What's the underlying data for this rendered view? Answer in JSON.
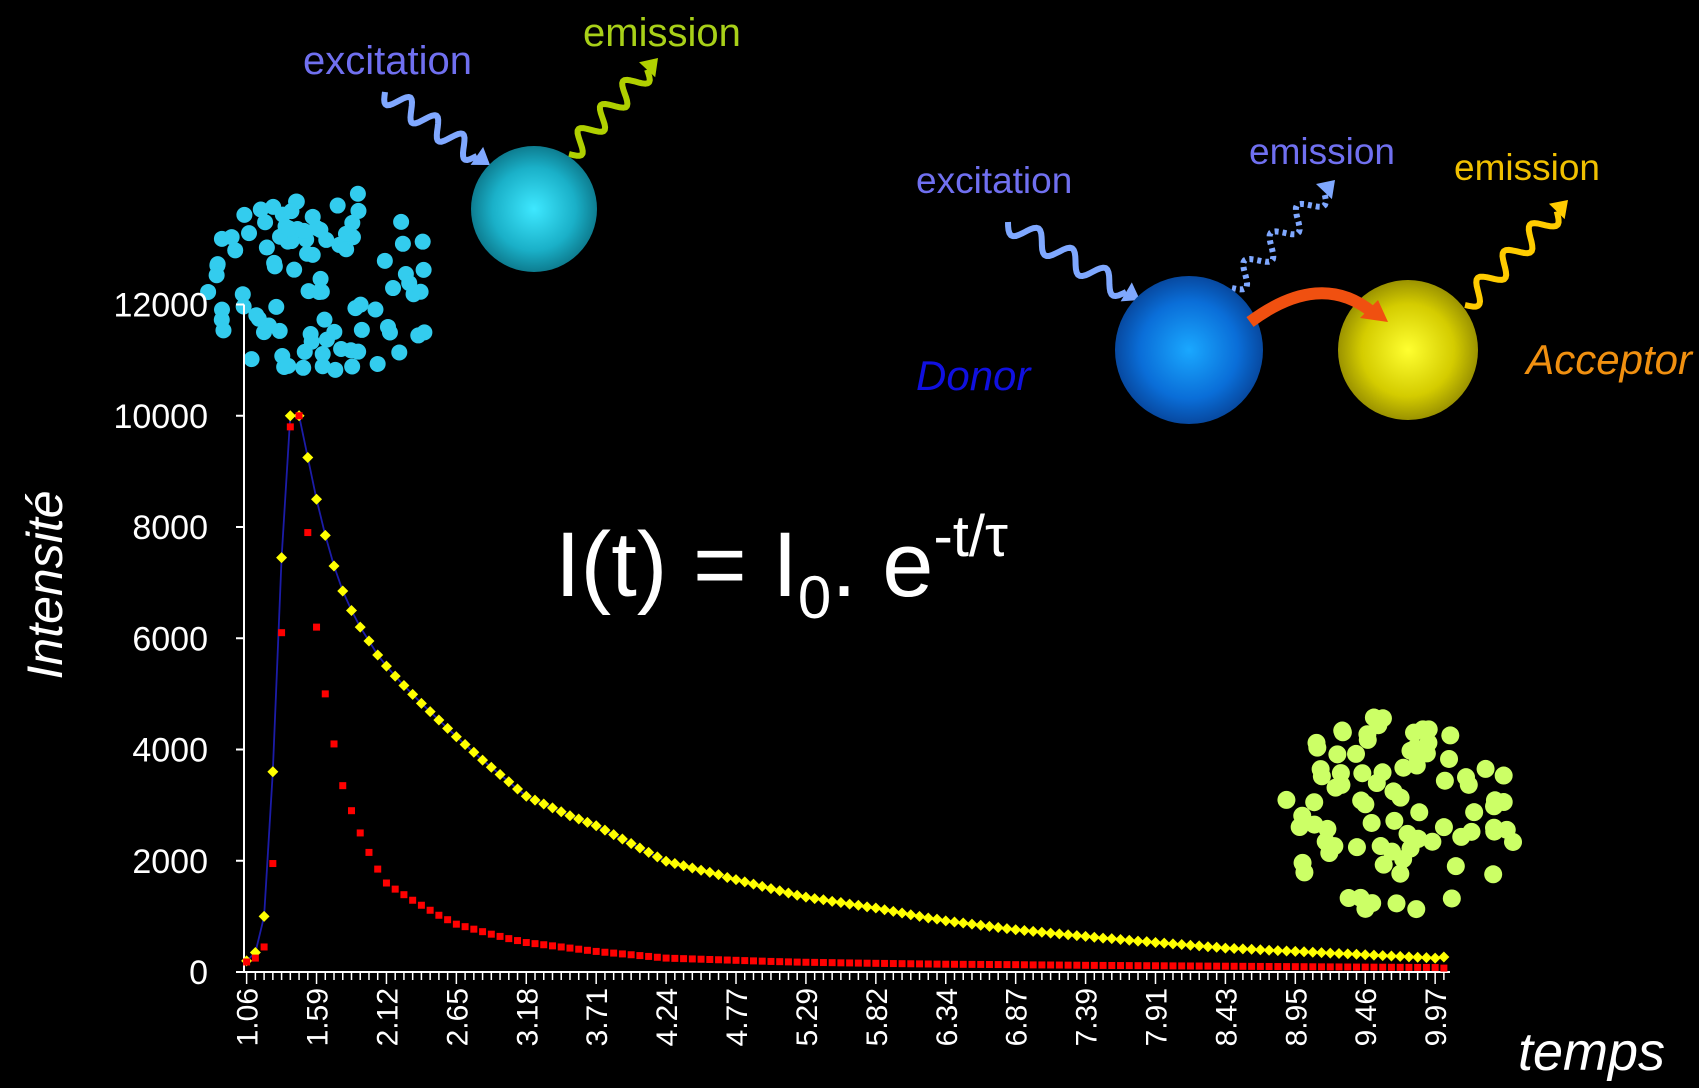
{
  "chart_data": {
    "type": "scatter",
    "y_label": "Intensité",
    "x_label": "temps",
    "equation": {
      "main": "I(t) = I",
      "sub": "0",
      "mid": ". e",
      "sup": "-t/τ"
    },
    "categories": [
      "1.06",
      null,
      null,
      null,
      null,
      null,
      null,
      null,
      "1.59",
      null,
      null,
      null,
      null,
      null,
      null,
      null,
      "2.12",
      null,
      null,
      null,
      null,
      null,
      null,
      null,
      "2.65",
      null,
      null,
      null,
      null,
      null,
      null,
      null,
      "3.18",
      null,
      null,
      null,
      null,
      null,
      null,
      null,
      "3.71",
      null,
      null,
      null,
      null,
      null,
      null,
      null,
      "4.24",
      null,
      null,
      null,
      null,
      null,
      null,
      null,
      "4.77",
      null,
      null,
      null,
      null,
      null,
      null,
      null,
      "5.29",
      null,
      null,
      null,
      null,
      null,
      null,
      null,
      "5.82",
      null,
      null,
      null,
      null,
      null,
      null,
      null,
      "6.34",
      null,
      null,
      null,
      null,
      null,
      null,
      null,
      "6.87",
      null,
      null,
      null,
      null,
      null,
      null,
      null,
      "7.39",
      null,
      null,
      null,
      null,
      null,
      null,
      null,
      "7.91",
      null,
      null,
      null,
      null,
      null,
      null,
      null,
      "8.43",
      null,
      null,
      null,
      null,
      null,
      null,
      null,
      "8.95",
      null,
      null,
      null,
      null,
      null,
      null,
      null,
      "9.46",
      null,
      null,
      null,
      null,
      null,
      null,
      null,
      "9.97",
      null
    ],
    "series": [
      {
        "color": "#ffff00",
        "line_color": "#1c1ca8",
        "marker": "diamond",
        "values": [
          200,
          350,
          1000,
          3600,
          7450,
          10000,
          10000,
          9250,
          8500,
          7850,
          7300,
          6850,
          6500,
          6200,
          5950,
          5700,
          5500,
          5320,
          5150,
          4990,
          4830,
          4680,
          4530,
          4380,
          4230,
          4090,
          3950,
          3810,
          3680,
          3550,
          3420,
          3290,
          3160,
          3090,
          3020,
          2950,
          2880,
          2810,
          2750,
          2690,
          2630,
          2550,
          2470,
          2390,
          2310,
          2230,
          2150,
          2070,
          1990,
          1950,
          1910,
          1870,
          1830,
          1790,
          1750,
          1700,
          1660,
          1620,
          1580,
          1540,
          1500,
          1460,
          1420,
          1380,
          1345,
          1320,
          1300,
          1270,
          1250,
          1220,
          1200,
          1170,
          1150,
          1120,
          1090,
          1060,
          1030,
          1000,
          970,
          950,
          920,
          900,
          880,
          860,
          840,
          820,
          800,
          780,
          760,
          745,
          730,
          715,
          700,
          685,
          670,
          655,
          640,
          625,
          610,
          600,
          585,
          570,
          555,
          545,
          530,
          520,
          505,
          495,
          480,
          470,
          455,
          445,
          430,
          423,
          415,
          408,
          400,
          392,
          385,
          378,
          370,
          363,
          355,
          348,
          340,
          333,
          325,
          318,
          310,
          303,
          295,
          288,
          280,
          273,
          265,
          258,
          250,
          270
        ]
      },
      {
        "color": "#ff0000",
        "marker": "square",
        "values": [
          180,
          250,
          450,
          1950,
          6100,
          9800,
          10000,
          7900,
          6200,
          5000,
          4100,
          3350,
          2900,
          2500,
          2150,
          1850,
          1600,
          1490,
          1390,
          1290,
          1200,
          1110,
          1020,
          940,
          860,
          815,
          770,
          725,
          680,
          640,
          600,
          565,
          530,
          510,
          490,
          470,
          450,
          430,
          410,
          390,
          370,
          355,
          340,
          325,
          310,
          295,
          280,
          265,
          250,
          245,
          240,
          235,
          230,
          225,
          220,
          215,
          210,
          205,
          200,
          195,
          190,
          186,
          182,
          178,
          175,
          173,
          170,
          168,
          165,
          163,
          160,
          158,
          156,
          154,
          152,
          150,
          148,
          146,
          144,
          142,
          140,
          139,
          138,
          137,
          136,
          135,
          134,
          133,
          132,
          130,
          128,
          127,
          126,
          125,
          123,
          122,
          120,
          119,
          118,
          117,
          116,
          115,
          114,
          113,
          112,
          111,
          110,
          109,
          108,
          107,
          106,
          105,
          104,
          103,
          102,
          101,
          100,
          99,
          98,
          97,
          96,
          95,
          94,
          93,
          92,
          91,
          90,
          89,
          88,
          87,
          86,
          85,
          84,
          83,
          82,
          81,
          80,
          70
        ]
      }
    ],
    "ylim": [
      0,
      12000
    ],
    "yticks": [
      0,
      2000,
      4000,
      6000,
      8000,
      10000,
      12000
    ],
    "grid": false
  },
  "diagram": {
    "single": {
      "excitation": "excitation",
      "emission": "emission"
    },
    "fret": {
      "excitation": "excitation",
      "donor_emission": "emission",
      "acceptor_emission": "emission",
      "donor": "Donor",
      "acceptor": "Acceptor"
    }
  }
}
